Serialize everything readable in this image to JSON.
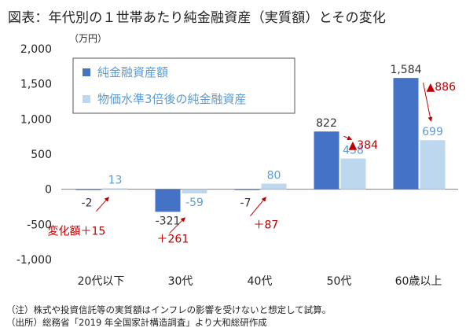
{
  "header": {
    "title": "図表：年代別の１世帯あたり純金融資産（実質額）とその変化",
    "unit": "（万円）"
  },
  "footer": {
    "note": "（注）株式や投資信託等の実質額はインフレの影響を受けないと想定して試算。",
    "source": "（出所）総務省「2019 年全国家計構造調査」より大和総研作成"
  },
  "colors": {
    "series1": "#4472c4",
    "series2": "#bdd7ee",
    "change": "#c00000",
    "axis": "#808080"
  },
  "chart_data": {
    "type": "bar",
    "categories": [
      "20代以下",
      "30代",
      "40代",
      "50代",
      "60歳以上"
    ],
    "series": [
      {
        "name": "純金融資産額",
        "values": [
          -2,
          -321,
          -7,
          822,
          1584
        ],
        "labels": [
          "-2",
          "-321",
          "-7",
          "822",
          "1,584"
        ]
      },
      {
        "name": "物価水準3倍後の純金融資産",
        "values": [
          13,
          -59,
          80,
          438,
          699
        ],
        "labels": [
          "13",
          "-59",
          "80",
          "438",
          "699"
        ]
      }
    ],
    "changes": [
      {
        "category": "20代以下",
        "label": "変化額＋15"
      },
      {
        "category": "30代",
        "label": "＋261"
      },
      {
        "category": "40代",
        "label": "＋87"
      },
      {
        "category": "50代",
        "label": "▲384"
      },
      {
        "category": "60歳以上",
        "label": "▲886"
      }
    ],
    "ylim": [
      -1000,
      2000
    ],
    "yticks": [
      -1000,
      -500,
      0,
      500,
      1000,
      1500,
      2000
    ],
    "ytick_labels": [
      "-1,000",
      "-500",
      "0",
      "500",
      "1,000",
      "1,500",
      "2,000"
    ],
    "legend_position": "top-left"
  }
}
